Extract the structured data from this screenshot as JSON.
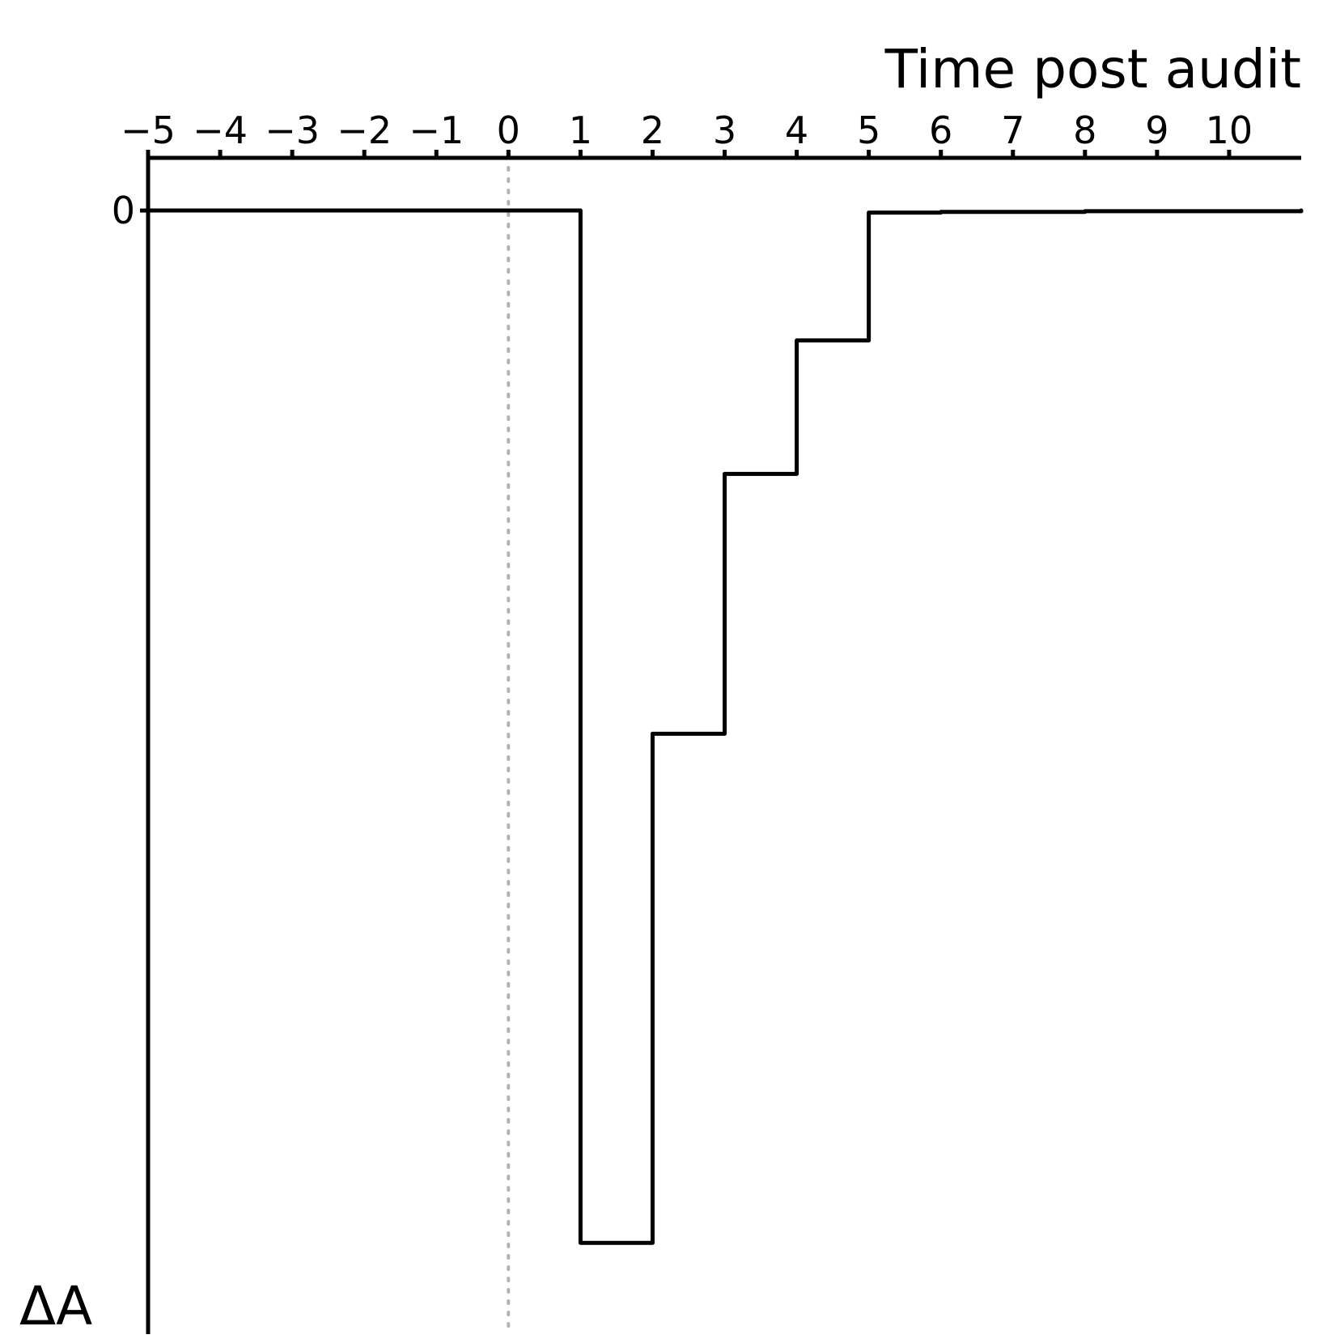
{
  "chart_data": {
    "type": "line",
    "step": "post",
    "xlabel": "Time post audit",
    "ylabel": "ΔA",
    "x_ticks": [
      -5,
      -4,
      -3,
      -2,
      -1,
      0,
      1,
      2,
      3,
      4,
      5,
      6,
      7,
      8,
      9,
      10
    ],
    "x_tick_labels": [
      "−5",
      "−4",
      "−3",
      "−2",
      "−1",
      "0",
      "1",
      "2",
      "3",
      "4",
      "5",
      "6",
      "7",
      "8",
      "9",
      "10"
    ],
    "y_ticks": [
      0
    ],
    "y_tick_labels": [
      "0"
    ],
    "xlim": [
      -5,
      11
    ],
    "ylim": [
      -16,
      0.75
    ],
    "x_axis_position": "top",
    "reference_line": {
      "x": 0,
      "style": "dotted",
      "color": "#b3b3b3"
    },
    "line_color": "#000000",
    "grid": false,
    "series": [
      {
        "x": [
          -5,
          1,
          2,
          3,
          4,
          5,
          6,
          8,
          11
        ],
        "y": [
          0,
          -14.7,
          -7.45,
          -3.75,
          -1.85,
          -0.03,
          -0.02,
          -0.01,
          0
        ]
      }
    ]
  }
}
